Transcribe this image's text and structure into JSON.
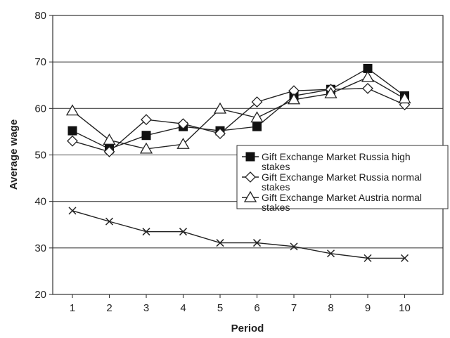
{
  "chart_data": {
    "type": "line",
    "xlabel": "Period",
    "ylabel": "Average wage",
    "x": [
      1,
      2,
      3,
      4,
      5,
      6,
      7,
      8,
      9,
      10
    ],
    "ylim": [
      20,
      80
    ],
    "yticks": [
      20,
      30,
      40,
      50,
      60,
      70,
      80
    ],
    "grid": "horizontal",
    "legend_placement": "right",
    "series": [
      {
        "name": "Gift Exchange Market Russia high stakes",
        "legend_lines": [
          "Gift Exchange Market Russia high",
          "stakes"
        ],
        "marker": "filled-square",
        "values": [
          55.2,
          51.3,
          54.2,
          56.1,
          55.2,
          56.1,
          62.7,
          64.1,
          68.6,
          62.7
        ]
      },
      {
        "name": "Gift Exchange Market Russia normal stakes",
        "legend_lines": [
          "Gift Exchange Market Russia normal",
          "stakes"
        ],
        "marker": "open-diamond",
        "values": [
          53.0,
          50.7,
          57.6,
          56.7,
          54.6,
          61.4,
          63.8,
          64.1,
          64.3,
          60.8
        ]
      },
      {
        "name": "Gift Exchange Market Austria normal stakes",
        "legend_lines": [
          "Gift Exchange Market Austria normal",
          "stakes"
        ],
        "marker": "open-triangle",
        "values": [
          59.5,
          53.2,
          51.3,
          52.3,
          59.9,
          58.0,
          61.9,
          63.2,
          66.7,
          62.1
        ]
      },
      {
        "marker": "cross",
        "values": [
          38.0,
          35.7,
          33.5,
          33.5,
          31.1,
          31.1,
          30.3,
          28.8,
          27.8,
          27.8
        ]
      }
    ]
  }
}
